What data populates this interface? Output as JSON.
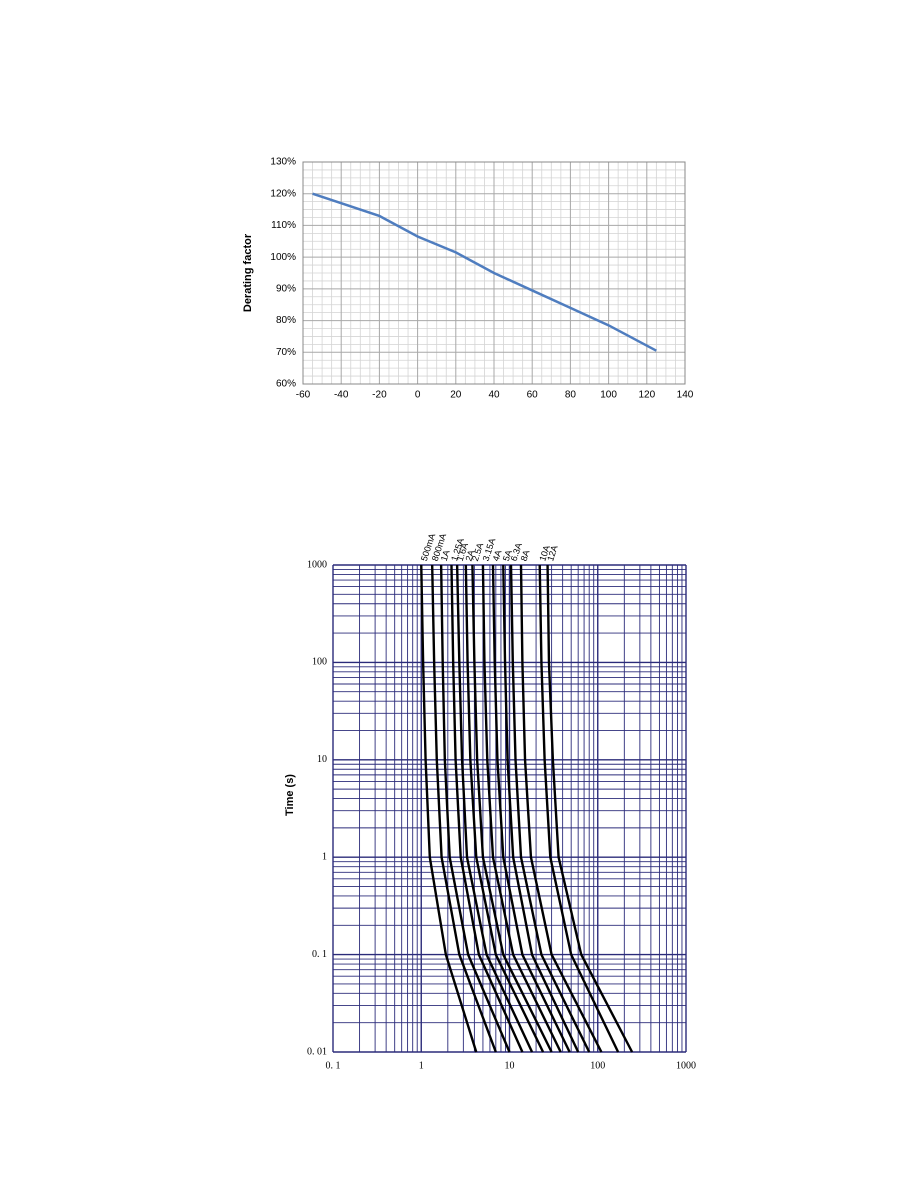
{
  "chart_data": [
    {
      "type": "line",
      "y_label": "Derating factor",
      "x": [
        -55,
        -40,
        -20,
        0,
        20,
        40,
        60,
        80,
        100,
        125
      ],
      "values": [
        120,
        117,
        113,
        106.5,
        101.5,
        95,
        89.5,
        84,
        78.5,
        70.5
      ],
      "color": "#4f7dbf",
      "xlim": [
        -60,
        140
      ],
      "xticks": [
        -60,
        -40,
        -20,
        0,
        20,
        40,
        60,
        80,
        100,
        120,
        140
      ],
      "ylim": [
        60,
        130
      ],
      "yticks": [
        {
          "value": 60,
          "label": "60%"
        },
        {
          "value": 70,
          "label": "70%"
        },
        {
          "value": 80,
          "label": "80%"
        },
        {
          "value": 90,
          "label": "90%"
        },
        {
          "value": 100,
          "label": "100%"
        },
        {
          "value": 110,
          "label": "110%"
        },
        {
          "value": 120,
          "label": "120%"
        },
        {
          "value": 130,
          "label": "130%"
        }
      ],
      "grid": true
    },
    {
      "type": "curves",
      "y_label": "Time (s)",
      "log": true,
      "y": [
        1000,
        100,
        10,
        1,
        0.1,
        0.01
      ],
      "series": [
        {
          "name": "500mA",
          "color": "#000000",
          "x": [
            1.0,
            1.05,
            1.12,
            1.25,
            1.9,
            4.2
          ]
        },
        {
          "name": "800mA",
          "color": "#000000",
          "x": [
            1.33,
            1.4,
            1.5,
            1.7,
            2.7,
            7
          ]
        },
        {
          "name": "1A",
          "color": "#000000",
          "x": [
            1.68,
            1.75,
            1.85,
            2.1,
            3.4,
            10
          ]
        },
        {
          "name": "1.25A",
          "color": "#000000",
          "x": [
            2.2,
            2.3,
            2.45,
            2.8,
            4.5,
            14
          ]
        },
        {
          "name": "1.6A",
          "color": "#000000",
          "x": [
            2.55,
            2.7,
            2.9,
            3.3,
            5.5,
            18
          ]
        },
        {
          "name": "2A",
          "color": "#000000",
          "x": [
            3.2,
            3.35,
            3.6,
            4.2,
            7,
            24
          ]
        },
        {
          "name": "2.5A",
          "color": "#000000",
          "x": [
            3.8,
            4,
            4.3,
            5,
            8.5,
            30
          ]
        },
        {
          "name": "3.15A",
          "color": "#000000",
          "x": [
            5,
            5.2,
            5.6,
            6.5,
            11,
            38
          ]
        },
        {
          "name": "4A",
          "color": "#000000",
          "x": [
            6.5,
            6.8,
            7.3,
            8.5,
            14,
            48
          ]
        },
        {
          "name": "5A",
          "color": "#000000",
          "x": [
            8.5,
            8.9,
            9.5,
            11,
            18,
            60
          ]
        },
        {
          "name": "6.3A",
          "color": "#000000",
          "x": [
            10.4,
            10.9,
            11.7,
            13.5,
            23,
            80
          ]
        },
        {
          "name": "8A",
          "color": "#000000",
          "x": [
            13.5,
            14,
            15,
            17.5,
            30,
            110
          ]
        },
        {
          "name": "10A",
          "color": "#000000",
          "x": [
            22,
            23,
            25,
            29,
            50,
            170
          ]
        },
        {
          "name": "12A",
          "color": "#000000",
          "x": [
            27,
            28,
            31,
            36,
            65,
            245
          ]
        }
      ],
      "xlim": [
        0.1,
        1000
      ],
      "xticks": [
        {
          "value": 0.1,
          "label": "0. 1"
        },
        1,
        10,
        100,
        1000
      ],
      "ylim": [
        0.01,
        1000
      ],
      "yticks": [
        1000,
        100,
        10,
        1,
        {
          "value": 0.1,
          "label": "0. 1"
        },
        {
          "value": 0.01,
          "label": "0. 01"
        }
      ],
      "grid": true
    }
  ]
}
